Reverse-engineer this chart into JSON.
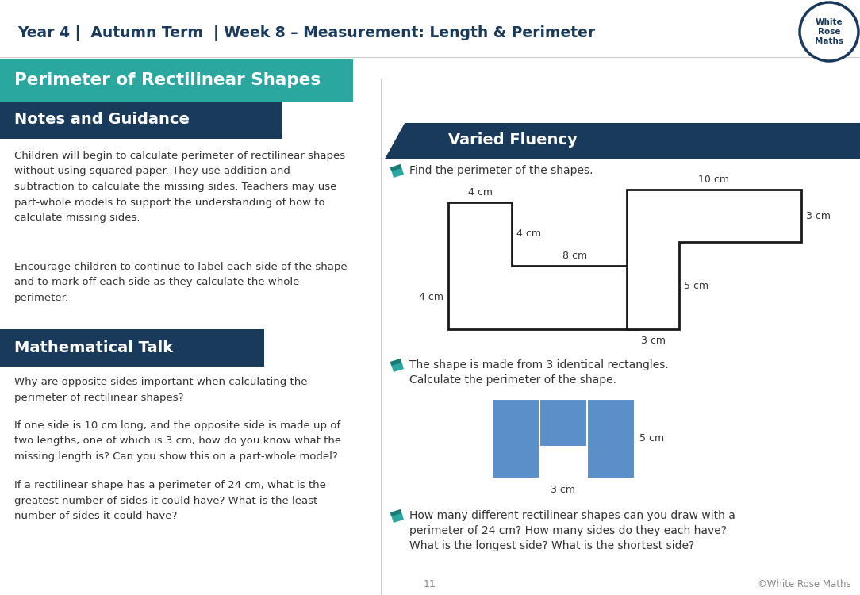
{
  "title_text": "Year 4 |  Autumn Term  | Week 8 – Measurement: Length & Perimeter",
  "title_color": "#1a3a5c",
  "bg_color": "#ffffff",
  "teal_color": "#2aa8a0",
  "dark_blue": "#1a3a5c",
  "heading1": "Perimeter of Rectilinear Shapes",
  "heading2_left": "Notes and Guidance",
  "heading2_right": "Varied Fluency",
  "heading3": "Mathematical Talk",
  "notes_text1": "Children will begin to calculate perimeter of rectilinear shapes\nwithout using squared paper. They use addition and\nsubtraction to calculate the missing sides. Teachers may use\npart-whole models to support the understanding of how to\ncalculate missing sides.",
  "notes_text2": "Encourage children to continue to label each side of the shape\nand to mark off each side as they calculate the whole\nperimeter.",
  "math_talk_q1": "Why are opposite sides important when calculating the\nperimeter of rectilinear shapes?",
  "math_talk_q2": "If one side is 10 cm long, and the opposite side is made up of\ntwo lengths, one of which is 3 cm, how do you know what the\nmissing length is? Can you show this on a part-whole model?",
  "math_talk_q3": "If a rectilinear shape has a perimeter of 24 cm, what is the\ngreatest number of sides it could have? What is the least\nnumber of sides it could have?",
  "vf_q1": "Find the perimeter of the shapes.",
  "vf_q2_line1": "The shape is made from 3 identical rectangles.",
  "vf_q2_line2": "Calculate the perimeter of the shape.",
  "vf_q3_line1": "How many different rectilinear shapes can you draw with a",
  "vf_q3_line2": "perimeter of 24 cm? How many sides do they each have?",
  "vf_q3_line3": "What is the longest side? What is the shortest side?",
  "page_num": "11",
  "copyright": "©White Rose Maths",
  "logo_line1": "White",
  "logo_line2": "Rose",
  "logo_line3": "Maths"
}
